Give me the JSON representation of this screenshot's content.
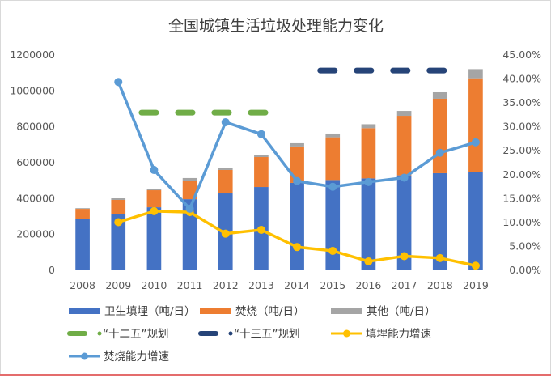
{
  "chart_data": {
    "type": "bar",
    "title": "全国城镇生活垃圾处理能力变化",
    "categories": [
      "2008",
      "2009",
      "2010",
      "2011",
      "2012",
      "2013",
      "2014",
      "2015",
      "2016",
      "2017",
      "2018",
      "2019"
    ],
    "y_left": {
      "range": [
        0,
        1200000
      ],
      "ticks": [
        "0",
        "200000",
        "400000",
        "600000",
        "800000",
        "1000000",
        "1200000"
      ]
    },
    "y_right": {
      "range": [
        0,
        45
      ],
      "unit": "%",
      "ticks": [
        "0.00%",
        "5.00%",
        "10.00%",
        "15.00%",
        "20.00%",
        "25.00%",
        "30.00%",
        "35.00%",
        "40.00%",
        "45.00%"
      ]
    },
    "grid": false,
    "legend_position": "bottom",
    "series": [
      {
        "name": "卫生填埋（吨/日）",
        "kind": "stacked-bar",
        "axis": "left",
        "color": "#4472c4",
        "values": [
          284000,
          311000,
          347000,
          392000,
          424000,
          460000,
          483000,
          499000,
          508000,
          525000,
          537000,
          543000
        ]
      },
      {
        "name": "焚烧（吨/日）",
        "kind": "stacked-bar",
        "axis": "left",
        "color": "#ed7d31",
        "values": [
          54000,
          77000,
          95000,
          104000,
          131000,
          167000,
          203000,
          238000,
          280000,
          332000,
          415000,
          523000
        ]
      },
      {
        "name": "其他（吨/日）",
        "kind": "stacked-bar",
        "axis": "left",
        "color": "#a5a5a5",
        "values": [
          4000,
          9000,
          5000,
          14000,
          12000,
          13000,
          18000,
          21000,
          22000,
          27000,
          36000,
          51000
        ]
      },
      {
        "name": "“十二五”规划",
        "kind": "dashed-line",
        "axis": "right",
        "color": "#70ad47",
        "x_range": [
          "2010",
          "2013"
        ],
        "value": 32.8
      },
      {
        "name": "“十三五”规划",
        "kind": "dashed-line",
        "axis": "right",
        "color": "#264478",
        "x_range": [
          "2015",
          "2018"
        ],
        "value": 41.6
      },
      {
        "name": "填埋能力增速",
        "kind": "line",
        "axis": "right",
        "color": "#ffc000",
        "values": [
          null,
          9.9,
          12.2,
          12.0,
          7.5,
          8.3,
          4.7,
          3.9,
          1.7,
          2.8,
          2.4,
          0.8
        ]
      },
      {
        "name": "焚烧能力增速",
        "kind": "line",
        "axis": "right",
        "color": "#5b9bd5",
        "values": [
          null,
          39.2,
          20.8,
          12.7,
          30.8,
          28.3,
          18.5,
          17.3,
          18.3,
          19.2,
          24.4,
          26.6
        ]
      }
    ]
  }
}
